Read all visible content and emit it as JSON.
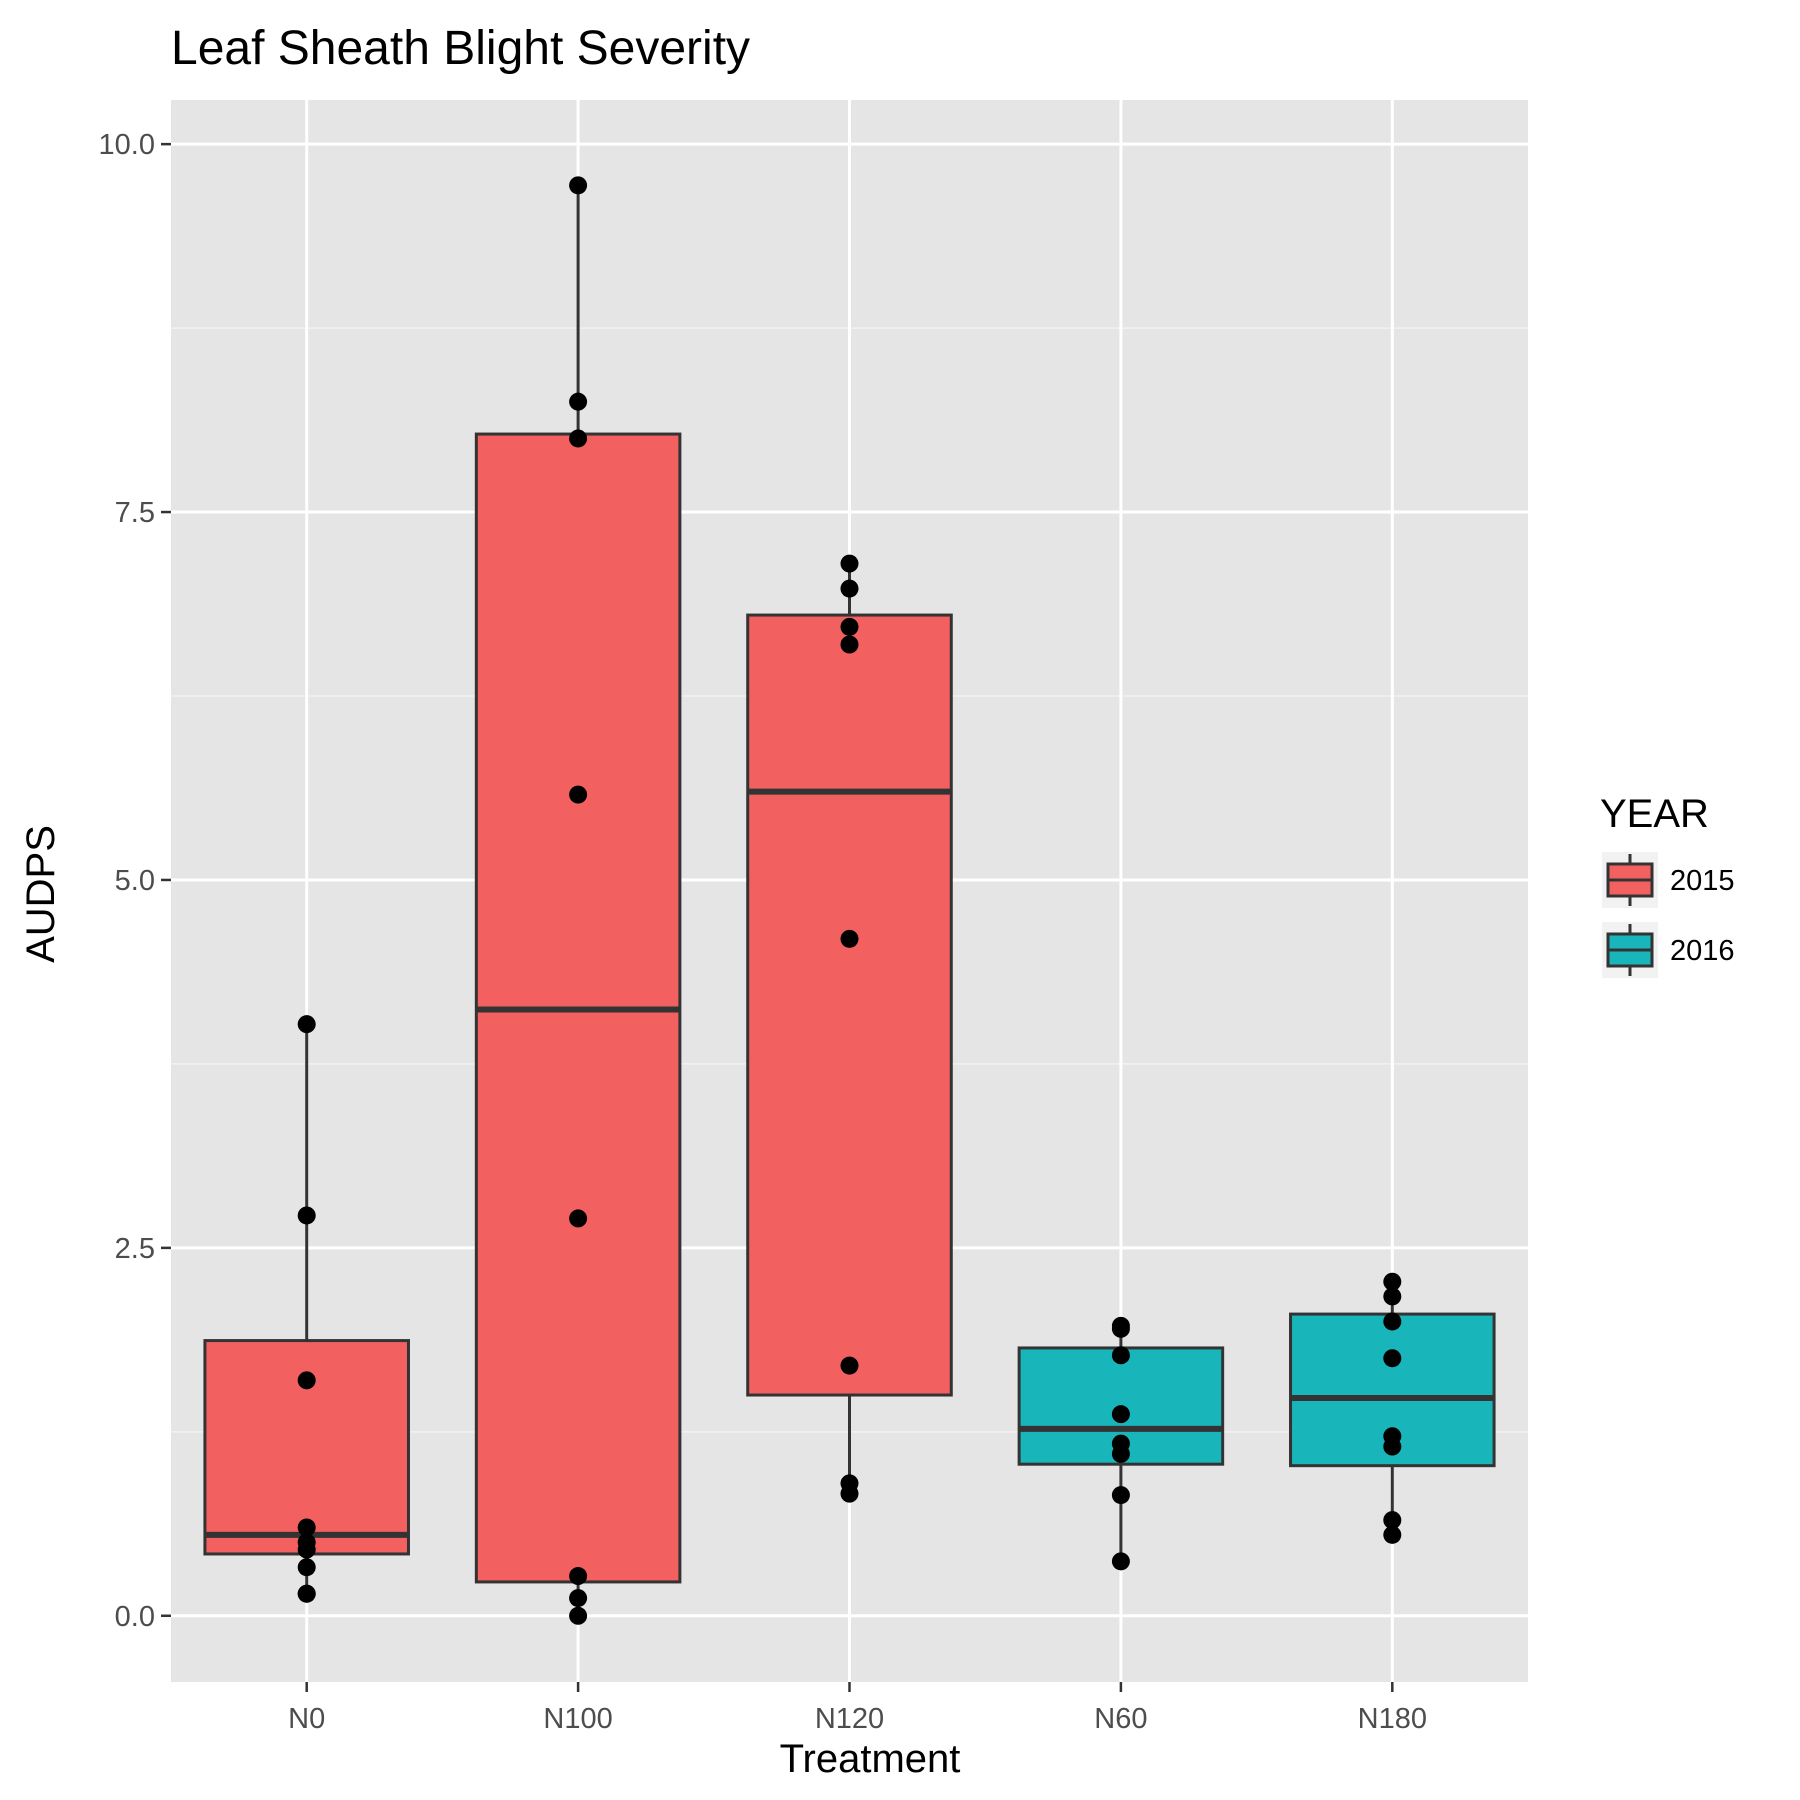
{
  "chart_data": {
    "type": "box",
    "title": "Leaf Sheath Blight Severity",
    "xlabel": "Treatment",
    "ylabel": "AUDPS",
    "ylim": [
      -0.45,
      10.3
    ],
    "yticks": [
      0.0,
      2.5,
      5.0,
      7.5,
      10.0
    ],
    "ytick_labels": [
      "0.0",
      "2.5",
      "5.0",
      "7.5",
      "10.0"
    ],
    "categories": [
      "N0",
      "N100",
      "N120",
      "N60",
      "N180"
    ],
    "grid": true,
    "legend": {
      "title": "YEAR",
      "position": "right",
      "entries": [
        {
          "label": "2015",
          "color": "#F36060"
        },
        {
          "label": "2016",
          "color": "#18B5BA"
        }
      ]
    },
    "boxes": [
      {
        "category": "N0",
        "year": "2015",
        "whisker_low": 0.15,
        "q1": 0.42,
        "median": 0.55,
        "q3": 1.87,
        "whisker_high": 4.02,
        "points": [
          0.15,
          0.15,
          0.33,
          0.45,
          0.5,
          0.6,
          1.6,
          2.72,
          4.02
        ]
      },
      {
        "category": "N100",
        "year": "2015",
        "whisker_low": 0.0,
        "q1": 0.23,
        "median": 4.12,
        "q3": 8.03,
        "whisker_high": 9.72,
        "points": [
          0.0,
          0.12,
          0.27,
          2.7,
          5.58,
          8.0,
          8.25,
          9.72
        ]
      },
      {
        "category": "N120",
        "year": "2015",
        "whisker_low": 0.83,
        "q1": 1.5,
        "median": 5.6,
        "q3": 6.8,
        "whisker_high": 7.15,
        "points": [
          0.83,
          0.9,
          1.7,
          4.6,
          6.6,
          6.72,
          6.98,
          7.15
        ]
      },
      {
        "category": "N60",
        "year": "2016",
        "whisker_low": 0.37,
        "q1": 1.03,
        "median": 1.27,
        "q3": 1.82,
        "whisker_high": 1.97,
        "points": [
          0.37,
          0.82,
          1.1,
          1.17,
          1.37,
          1.77,
          1.95,
          1.97
        ]
      },
      {
        "category": "N180",
        "year": "2016",
        "whisker_low": 0.55,
        "q1": 1.02,
        "median": 1.48,
        "q3": 2.05,
        "whisker_high": 2.27,
        "points": [
          0.55,
          0.65,
          1.15,
          1.22,
          1.75,
          2.0,
          2.17,
          2.27
        ]
      }
    ]
  }
}
